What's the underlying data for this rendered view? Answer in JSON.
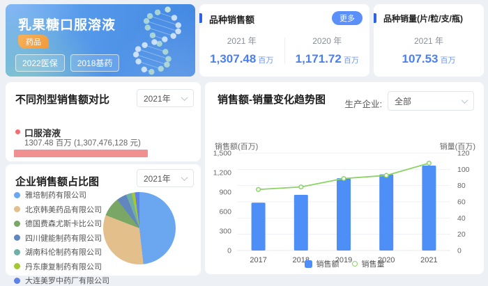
{
  "hero": {
    "title": "乳果糖口服溶液",
    "badge": "药品",
    "tags": [
      "2022医保",
      "2018基药"
    ]
  },
  "sales_card": {
    "title": "品种销售额",
    "more_label": "更多",
    "items": [
      {
        "year": "2021 年",
        "value": "1,307.48",
        "unit": "百万"
      },
      {
        "year": "2020 年",
        "value": "1,171.72",
        "unit": "百万"
      }
    ]
  },
  "volume_card": {
    "title": "品种销量(片/粒/支/瓶)",
    "year": "2021 年",
    "value": "107.53",
    "unit": "百万"
  },
  "dosage_card": {
    "title": "不同剂型销售额对比",
    "year_filter": "2021年",
    "item": {
      "name": "口服溶液",
      "detail": "1307.48 百万 (1,307,476,128 元)",
      "bar_color": "#f09090",
      "value_millions": 1307.48
    }
  },
  "colors": {
    "accent_blue": "#2e62e8",
    "value_blue": "#4a7ff0",
    "more_button": "#5b8ff9",
    "badge_orange": "#f3a347",
    "dosage_bar_pink": "#f09090"
  },
  "chart_data": [
    {
      "type": "pie",
      "title": "企业销售额占比图",
      "year_filter": "2021年",
      "legend_position": "left",
      "labels": [
        "雅培制药有限公司",
        "北京韩美药品有限公司",
        "德国费森尤斯卡比公司",
        "四川健能制药有限公司",
        "湖南科伦制药有限公司",
        "丹东康复制药有限公司",
        "大连美罗中药厂有限公司"
      ],
      "values_percent": [
        48,
        32.5,
        8.5,
        4.5,
        2.5,
        1.5,
        2
      ],
      "colors": [
        "#6BA7F0",
        "#E3BF8C",
        "#7AA765",
        "#6187BE",
        "#6FB0A6",
        "#A4C733",
        "#5F82E8"
      ]
    },
    {
      "type": "combo",
      "title": "销售额-销量变化趋势图",
      "producer_filter_label": "生产企业:",
      "producer_filter_value": "全部",
      "categories": [
        "2017",
        "2018",
        "2019",
        "2020",
        "2021"
      ],
      "series": [
        {
          "name": "销售额",
          "kind": "bar",
          "axis": "left",
          "color": "#4E8FF7",
          "values": [
            737,
            857,
            1113,
            1171.72,
            1307.48
          ]
        },
        {
          "name": "销售量",
          "kind": "line",
          "axis": "right",
          "color": "#8BD463",
          "values": [
            75.2,
            78.3,
            88.7,
            92.5,
            107.53
          ]
        }
      ],
      "y_left": {
        "label": "销售额(百万)",
        "min": 0,
        "max": 1500,
        "ticks": [
          "0",
          "300",
          "600",
          "900",
          "1,200",
          "1,500"
        ]
      },
      "y_right": {
        "label": "销量(百万)",
        "min": 0,
        "max": 120,
        "ticks": [
          "0",
          "20",
          "40",
          "60",
          "80",
          "100",
          "120"
        ]
      },
      "grid": true,
      "legend_position": "bottom"
    }
  ]
}
